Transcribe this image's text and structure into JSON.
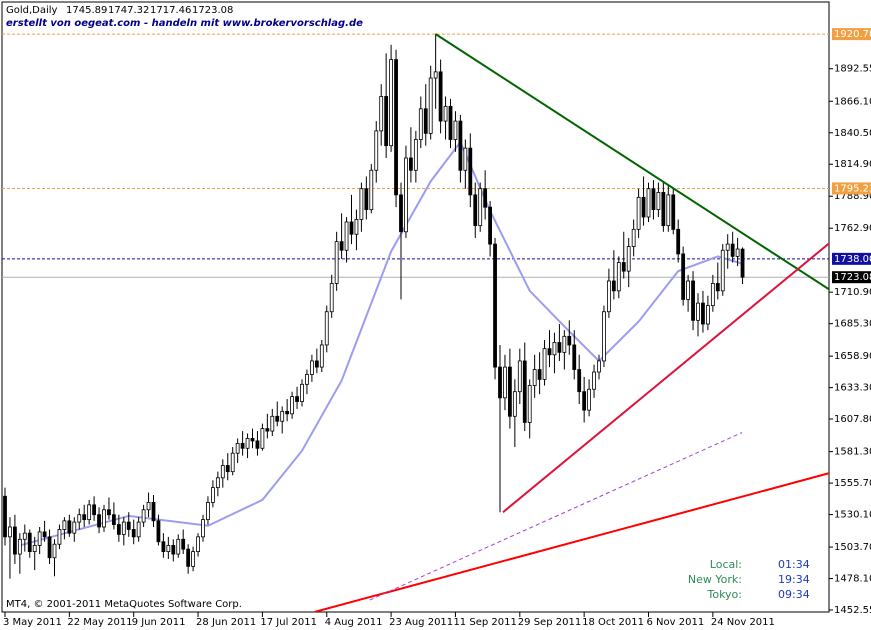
{
  "chart_data": {
    "type": "candlestick",
    "title": "Gold,Daily",
    "subtitle": "erstellt von oegeat.com - handeln mit www.brokervorschlag.de",
    "footer": "MT4, © 2001-2011 MetaQuotes Software Corp.",
    "ylim": [
      1450.9,
      1946.8
    ],
    "yticks": [
      1892.55,
      {
        "value": 1866.1,
        "label": "1866.10"
      },
      {
        "value": 1840.5,
        "label": "1840.50"
      },
      {
        "value": 1814.9,
        "label": "1814.90"
      },
      {
        "value": 1788.9,
        "label": "1788.90"
      },
      {
        "value": 1762.9,
        "label": "1762.90"
      },
      {
        "value": 1710.9,
        "label": "1710.90"
      },
      {
        "value": 1685.3,
        "label": "1685.30"
      },
      {
        "value": 1658.9,
        "label": "1658.90"
      },
      {
        "value": 1633.3,
        "label": "1633.30"
      },
      {
        "value": 1607.8,
        "label": "1607.80"
      },
      {
        "value": 1581.3,
        "label": "1581.30"
      },
      {
        "value": 1555.7,
        "label": "1555.70"
      },
      {
        "value": 1530.1,
        "label": "1530.10"
      },
      {
        "value": 1503.7,
        "label": "1503.70"
      },
      {
        "value": 1478.1,
        "label": "1478.10"
      },
      1452.55
    ],
    "xticks": [
      {
        "value": 0,
        "label": "3 May 2011"
      },
      {
        "value": 13,
        "label": "22 May 2011"
      },
      {
        "value": 26,
        "label": "9 Jun 2011"
      },
      {
        "value": 39,
        "label": "28 Jun 2011"
      },
      {
        "value": 52,
        "label": "17 Jul 2011"
      },
      {
        "value": 65,
        "label": "4 Aug 2011"
      },
      {
        "value": 78,
        "label": "23 Aug 2011"
      },
      {
        "value": 91,
        "label": "11 Sep 2011"
      },
      {
        "value": 104,
        "label": "29 Sep 2011"
      },
      {
        "value": 117,
        "label": "18 Oct 2011"
      },
      {
        "value": 130,
        "label": "6 Nov 2011"
      },
      {
        "value": 143,
        "label": "24 Nov 2011"
      }
    ],
    "up_color": "#ffffff",
    "down_color": "#000000",
    "ohlc": [
      [
        1545,
        1552,
        1505,
        1512
      ],
      [
        1512,
        1528,
        1478,
        1520
      ],
      [
        1520,
        1530,
        1490,
        1498
      ],
      [
        1498,
        1515,
        1482,
        1510
      ],
      [
        1510,
        1522,
        1500,
        1515
      ],
      [
        1515,
        1518,
        1495,
        1500
      ],
      [
        1500,
        1512,
        1485,
        1505
      ],
      [
        1505,
        1520,
        1498,
        1516
      ],
      [
        1516,
        1525,
        1508,
        1512
      ],
      [
        1512,
        1518,
        1490,
        1495
      ],
      [
        1495,
        1510,
        1480,
        1506
      ],
      [
        1506,
        1522,
        1502,
        1518
      ],
      [
        1518,
        1528,
        1510,
        1525
      ],
      [
        1525,
        1530,
        1512,
        1515
      ],
      [
        1515,
        1528,
        1508,
        1524
      ],
      [
        1524,
        1535,
        1518,
        1530
      ],
      [
        1530,
        1538,
        1520,
        1526
      ],
      [
        1526,
        1542,
        1522,
        1538
      ],
      [
        1538,
        1545,
        1525,
        1530
      ],
      [
        1530,
        1536,
        1515,
        1520
      ],
      [
        1520,
        1538,
        1516,
        1534
      ],
      [
        1534,
        1544,
        1526,
        1530
      ],
      [
        1530,
        1540,
        1518,
        1522
      ],
      [
        1522,
        1530,
        1508,
        1514
      ],
      [
        1514,
        1528,
        1505,
        1524
      ],
      [
        1524,
        1532,
        1512,
        1518
      ],
      [
        1518,
        1526,
        1506,
        1512
      ],
      [
        1512,
        1528,
        1508,
        1524
      ],
      [
        1524,
        1538,
        1520,
        1534
      ],
      [
        1534,
        1548,
        1528,
        1540
      ],
      [
        1540,
        1546,
        1520,
        1525
      ],
      [
        1525,
        1530,
        1505,
        1508
      ],
      [
        1508,
        1515,
        1495,
        1500
      ],
      [
        1500,
        1512,
        1494,
        1505
      ],
      [
        1505,
        1510,
        1492,
        1498
      ],
      [
        1498,
        1514,
        1495,
        1510
      ],
      [
        1510,
        1518,
        1498,
        1502
      ],
      [
        1502,
        1506,
        1482,
        1488
      ],
      [
        1488,
        1504,
        1484,
        1500
      ],
      [
        1500,
        1515,
        1496,
        1512
      ],
      [
        1512,
        1530,
        1508,
        1526
      ],
      [
        1526,
        1545,
        1522,
        1540
      ],
      [
        1540,
        1558,
        1536,
        1552
      ],
      [
        1552,
        1565,
        1545,
        1560
      ],
      [
        1560,
        1575,
        1552,
        1570
      ],
      [
        1570,
        1580,
        1558,
        1565
      ],
      [
        1565,
        1585,
        1562,
        1580
      ],
      [
        1580,
        1592,
        1572,
        1588
      ],
      [
        1588,
        1598,
        1578,
        1584
      ],
      [
        1584,
        1596,
        1576,
        1592
      ],
      [
        1592,
        1600,
        1584,
        1590
      ],
      [
        1590,
        1598,
        1578,
        1584
      ],
      [
        1584,
        1604,
        1582,
        1600
      ],
      [
        1600,
        1612,
        1592,
        1598
      ],
      [
        1598,
        1616,
        1594,
        1610
      ],
      [
        1610,
        1622,
        1602,
        1606
      ],
      [
        1606,
        1618,
        1596,
        1614
      ],
      [
        1614,
        1624,
        1606,
        1612
      ],
      [
        1612,
        1630,
        1608,
        1626
      ],
      [
        1626,
        1634,
        1616,
        1622
      ],
      [
        1622,
        1640,
        1618,
        1636
      ],
      [
        1636,
        1648,
        1628,
        1644
      ],
      [
        1644,
        1660,
        1638,
        1655
      ],
      [
        1655,
        1665,
        1645,
        1650
      ],
      [
        1650,
        1672,
        1646,
        1668
      ],
      [
        1668,
        1700,
        1662,
        1695
      ],
      [
        1695,
        1725,
        1690,
        1718
      ],
      [
        1718,
        1760,
        1712,
        1752
      ],
      [
        1752,
        1775,
        1738,
        1745
      ],
      [
        1745,
        1772,
        1735,
        1768
      ],
      [
        1768,
        1790,
        1750,
        1758
      ],
      [
        1758,
        1778,
        1745,
        1770
      ],
      [
        1770,
        1800,
        1760,
        1795
      ],
      [
        1795,
        1805,
        1770,
        1778
      ],
      [
        1778,
        1815,
        1775,
        1810
      ],
      [
        1810,
        1850,
        1800,
        1842
      ],
      [
        1842,
        1880,
        1830,
        1870
      ],
      [
        1870,
        1905,
        1820,
        1830
      ],
      [
        1830,
        1912,
        1825,
        1900
      ],
      [
        1900,
        1908,
        1780,
        1790
      ],
      [
        1790,
        1800,
        1705,
        1760
      ],
      [
        1760,
        1830,
        1755,
        1820
      ],
      [
        1820,
        1845,
        1800,
        1810
      ],
      [
        1810,
        1842,
        1800,
        1835
      ],
      [
        1835,
        1870,
        1828,
        1860
      ],
      [
        1860,
        1880,
        1830,
        1840
      ],
      [
        1840,
        1895,
        1835,
        1885
      ],
      [
        1885,
        1921,
        1860,
        1890
      ],
      [
        1890,
        1900,
        1840,
        1850
      ],
      [
        1850,
        1870,
        1835,
        1862
      ],
      [
        1862,
        1868,
        1828,
        1835
      ],
      [
        1835,
        1858,
        1825,
        1850
      ],
      [
        1850,
        1855,
        1800,
        1810
      ],
      [
        1810,
        1835,
        1795,
        1828
      ],
      [
        1828,
        1840,
        1780,
        1790
      ],
      [
        1790,
        1800,
        1755,
        1765
      ],
      [
        1765,
        1800,
        1760,
        1795
      ],
      [
        1795,
        1810,
        1770,
        1780
      ],
      [
        1780,
        1785,
        1740,
        1750
      ],
      [
        1750,
        1755,
        1640,
        1650
      ],
      [
        1650,
        1668,
        1532,
        1625
      ],
      [
        1625,
        1660,
        1615,
        1650
      ],
      [
        1650,
        1665,
        1600,
        1610
      ],
      [
        1610,
        1640,
        1585,
        1630
      ],
      [
        1630,
        1665,
        1620,
        1655
      ],
      [
        1655,
        1670,
        1598,
        1605
      ],
      [
        1605,
        1640,
        1592,
        1635
      ],
      [
        1635,
        1660,
        1625,
        1648
      ],
      [
        1648,
        1662,
        1628,
        1640
      ],
      [
        1640,
        1672,
        1635,
        1665
      ],
      [
        1665,
        1680,
        1650,
        1660
      ],
      [
        1660,
        1678,
        1645,
        1670
      ],
      [
        1670,
        1685,
        1655,
        1662
      ],
      [
        1662,
        1680,
        1648,
        1675
      ],
      [
        1675,
        1688,
        1660,
        1668
      ],
      [
        1668,
        1680,
        1640,
        1648
      ],
      [
        1648,
        1660,
        1620,
        1630
      ],
      [
        1630,
        1642,
        1605,
        1615
      ],
      [
        1615,
        1640,
        1610,
        1632
      ],
      [
        1632,
        1652,
        1625,
        1646
      ],
      [
        1646,
        1660,
        1640,
        1655
      ],
      [
        1655,
        1700,
        1650,
        1695
      ],
      [
        1695,
        1730,
        1690,
        1720
      ],
      [
        1720,
        1745,
        1705,
        1712
      ],
      [
        1712,
        1740,
        1706,
        1735
      ],
      [
        1735,
        1760,
        1722,
        1728
      ],
      [
        1728,
        1755,
        1715,
        1748
      ],
      [
        1748,
        1770,
        1740,
        1762
      ],
      [
        1762,
        1795,
        1755,
        1788
      ],
      [
        1788,
        1805,
        1765,
        1772
      ],
      [
        1772,
        1800,
        1768,
        1795
      ],
      [
        1795,
        1802,
        1770,
        1778
      ],
      [
        1778,
        1800,
        1772,
        1792
      ],
      [
        1792,
        1800,
        1760,
        1765
      ],
      [
        1765,
        1798,
        1760,
        1790
      ],
      [
        1790,
        1795,
        1758,
        1762
      ],
      [
        1762,
        1770,
        1735,
        1742
      ],
      [
        1742,
        1748,
        1700,
        1705
      ],
      [
        1705,
        1725,
        1695,
        1720
      ],
      [
        1720,
        1728,
        1680,
        1688
      ],
      [
        1688,
        1710,
        1675,
        1702
      ],
      [
        1702,
        1712,
        1678,
        1685
      ],
      [
        1685,
        1708,
        1680,
        1700
      ],
      [
        1700,
        1725,
        1695,
        1718
      ],
      [
        1718,
        1735,
        1705,
        1712
      ],
      [
        1712,
        1750,
        1708,
        1745
      ],
      [
        1745,
        1758,
        1730,
        1750
      ],
      [
        1750,
        1760,
        1735,
        1740
      ],
      [
        1740,
        1755,
        1732,
        1746
      ],
      [
        1745.89,
        1747.32,
        1717.46,
        1723.08
      ]
    ],
    "ma": {
      "color": "#9c9cf0",
      "x": [
        3,
        25,
        41,
        52,
        60,
        68,
        78,
        86,
        92,
        98,
        106,
        114,
        120,
        128,
        136,
        144,
        149
      ],
      "values": [
        1505,
        1529,
        1521,
        1542,
        1582,
        1639,
        1744,
        1801,
        1833,
        1777,
        1712,
        1679,
        1655,
        1687,
        1728,
        1740,
        1734
      ]
    },
    "trendlines": [
      {
        "color": "#006400",
        "width": 2,
        "x": [
          87,
          167
        ],
        "y": [
          1920.7,
          1711.8
        ]
      },
      {
        "color": "#dc143c",
        "width": 2,
        "x": [
          100.6,
          167
        ],
        "y": [
          1532,
          1752.3
        ]
      },
      {
        "color": "#ff0000",
        "width": 2,
        "x": [
          62.6,
          167
        ],
        "y": [
          1451,
          1564.3
        ]
      },
      {
        "color": "#a040e0",
        "width": 1,
        "dashed": true,
        "x": [
          73.7,
          148.9
        ],
        "y": [
          1460.6,
          1596.8
        ]
      }
    ],
    "levels": [
      {
        "value": 1920.7,
        "label": "1920.70",
        "color": "#f0a040",
        "text_color": "#ffffff",
        "dashed": true
      },
      {
        "value": 1795.23,
        "color": "#f0a040",
        "text_color": "#ffffff",
        "dashed": true
      },
      {
        "value": 1738,
        "label": "1738.00",
        "color": "#1010a0",
        "text_color": "#ffffff",
        "dashed": true
      }
    ],
    "price_line_color": "#b0b0b0",
    "clock": [
      [
        "Local:",
        "01:34"
      ],
      [
        "New York:",
        "19:34"
      ],
      [
        "Tokyo:",
        "09:34"
      ]
    ]
  }
}
